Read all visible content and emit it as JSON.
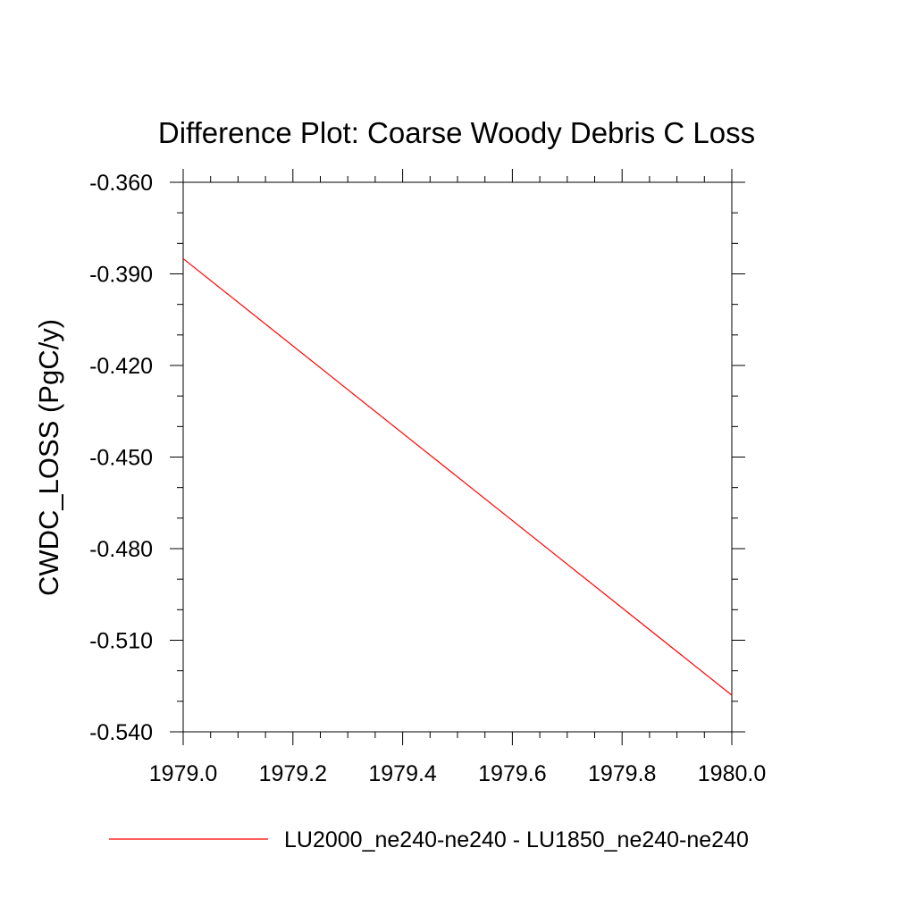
{
  "chart_data": {
    "type": "line",
    "title": "Difference Plot: Coarse Woody Debris C Loss",
    "xlabel": "",
    "ylabel": "CWDC_LOSS  (PgC/y)",
    "xlim": [
      1979.0,
      1980.0
    ],
    "ylim": [
      -0.54,
      -0.36
    ],
    "x_ticks": [
      "1979.0",
      "1979.2",
      "1979.4",
      "1979.6",
      "1979.8",
      "1980.0"
    ],
    "x_tick_values": [
      1979.0,
      1979.2,
      1979.4,
      1979.6,
      1979.8,
      1980.0
    ],
    "y_ticks": [
      "-0.360",
      "-0.390",
      "-0.420",
      "-0.450",
      "-0.480",
      "-0.510",
      "-0.540"
    ],
    "y_tick_values": [
      -0.36,
      -0.39,
      -0.42,
      -0.45,
      -0.48,
      -0.51,
      -0.54
    ],
    "grid": false,
    "legend_position": "bottom",
    "series": [
      {
        "name": "LU2000_ne240-ne240 - LU1850_ne240-ne240",
        "color": "#ff0000",
        "x": [
          1979.0,
          1980.0
        ],
        "y": [
          -0.385,
          -0.528
        ]
      }
    ]
  }
}
